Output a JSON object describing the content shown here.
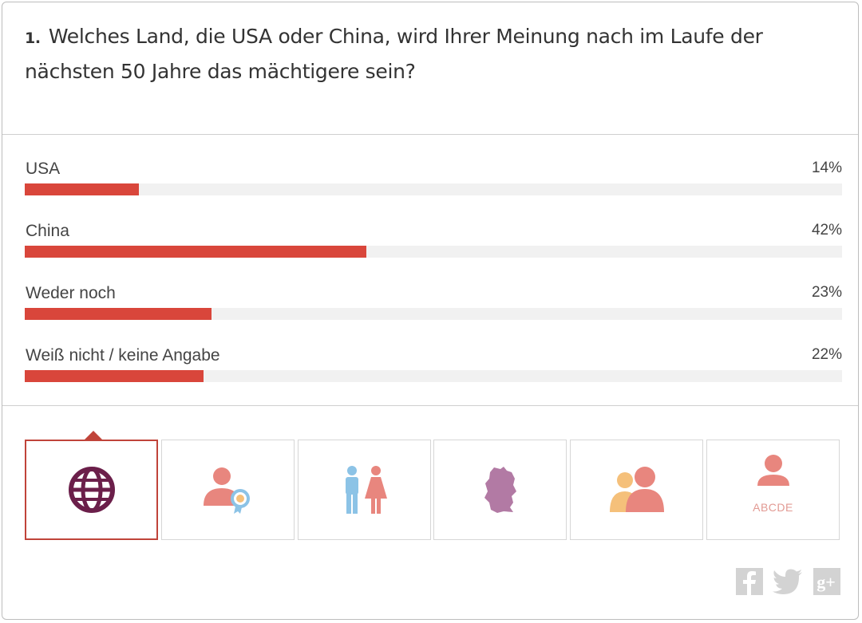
{
  "question": {
    "number": "1.",
    "text": "Welches Land, die USA oder China, wird Ihrer Meinung nach im Laufe der nächsten 50 Jahre das mächtigere sein?"
  },
  "results": [
    {
      "label": "USA",
      "percent_text": "14%",
      "value": 14
    },
    {
      "label": "China",
      "percent_text": "42%",
      "value": 42
    },
    {
      "label": "Weder noch",
      "percent_text": "23%",
      "value": 23
    },
    {
      "label": "Weiß nicht / keine Angabe",
      "percent_text": "22%",
      "value": 22
    }
  ],
  "colors": {
    "bar": "#d9463b",
    "track": "#f1f1f1",
    "active_border": "#c0443a",
    "globe": "#6b1f4a",
    "person_red": "#e8867e",
    "person_orange": "#f5c07a",
    "person_blue": "#8cc3e6",
    "map_purple": "#b27aa4",
    "social_gray": "#d3d3d3"
  },
  "filter_tabs": [
    {
      "icon": "globe-icon",
      "active": true
    },
    {
      "icon": "person-award-icon",
      "active": false
    },
    {
      "icon": "man-woman-icon",
      "active": false
    },
    {
      "icon": "germany-map-icon",
      "active": false
    },
    {
      "icon": "two-people-icon",
      "active": false
    },
    {
      "icon": "person-education-icon",
      "active": false,
      "caption": "ABCDE"
    }
  ],
  "social": [
    {
      "icon": "facebook-icon"
    },
    {
      "icon": "twitter-icon"
    },
    {
      "icon": "google-plus-icon",
      "label": "g+"
    }
  ]
}
